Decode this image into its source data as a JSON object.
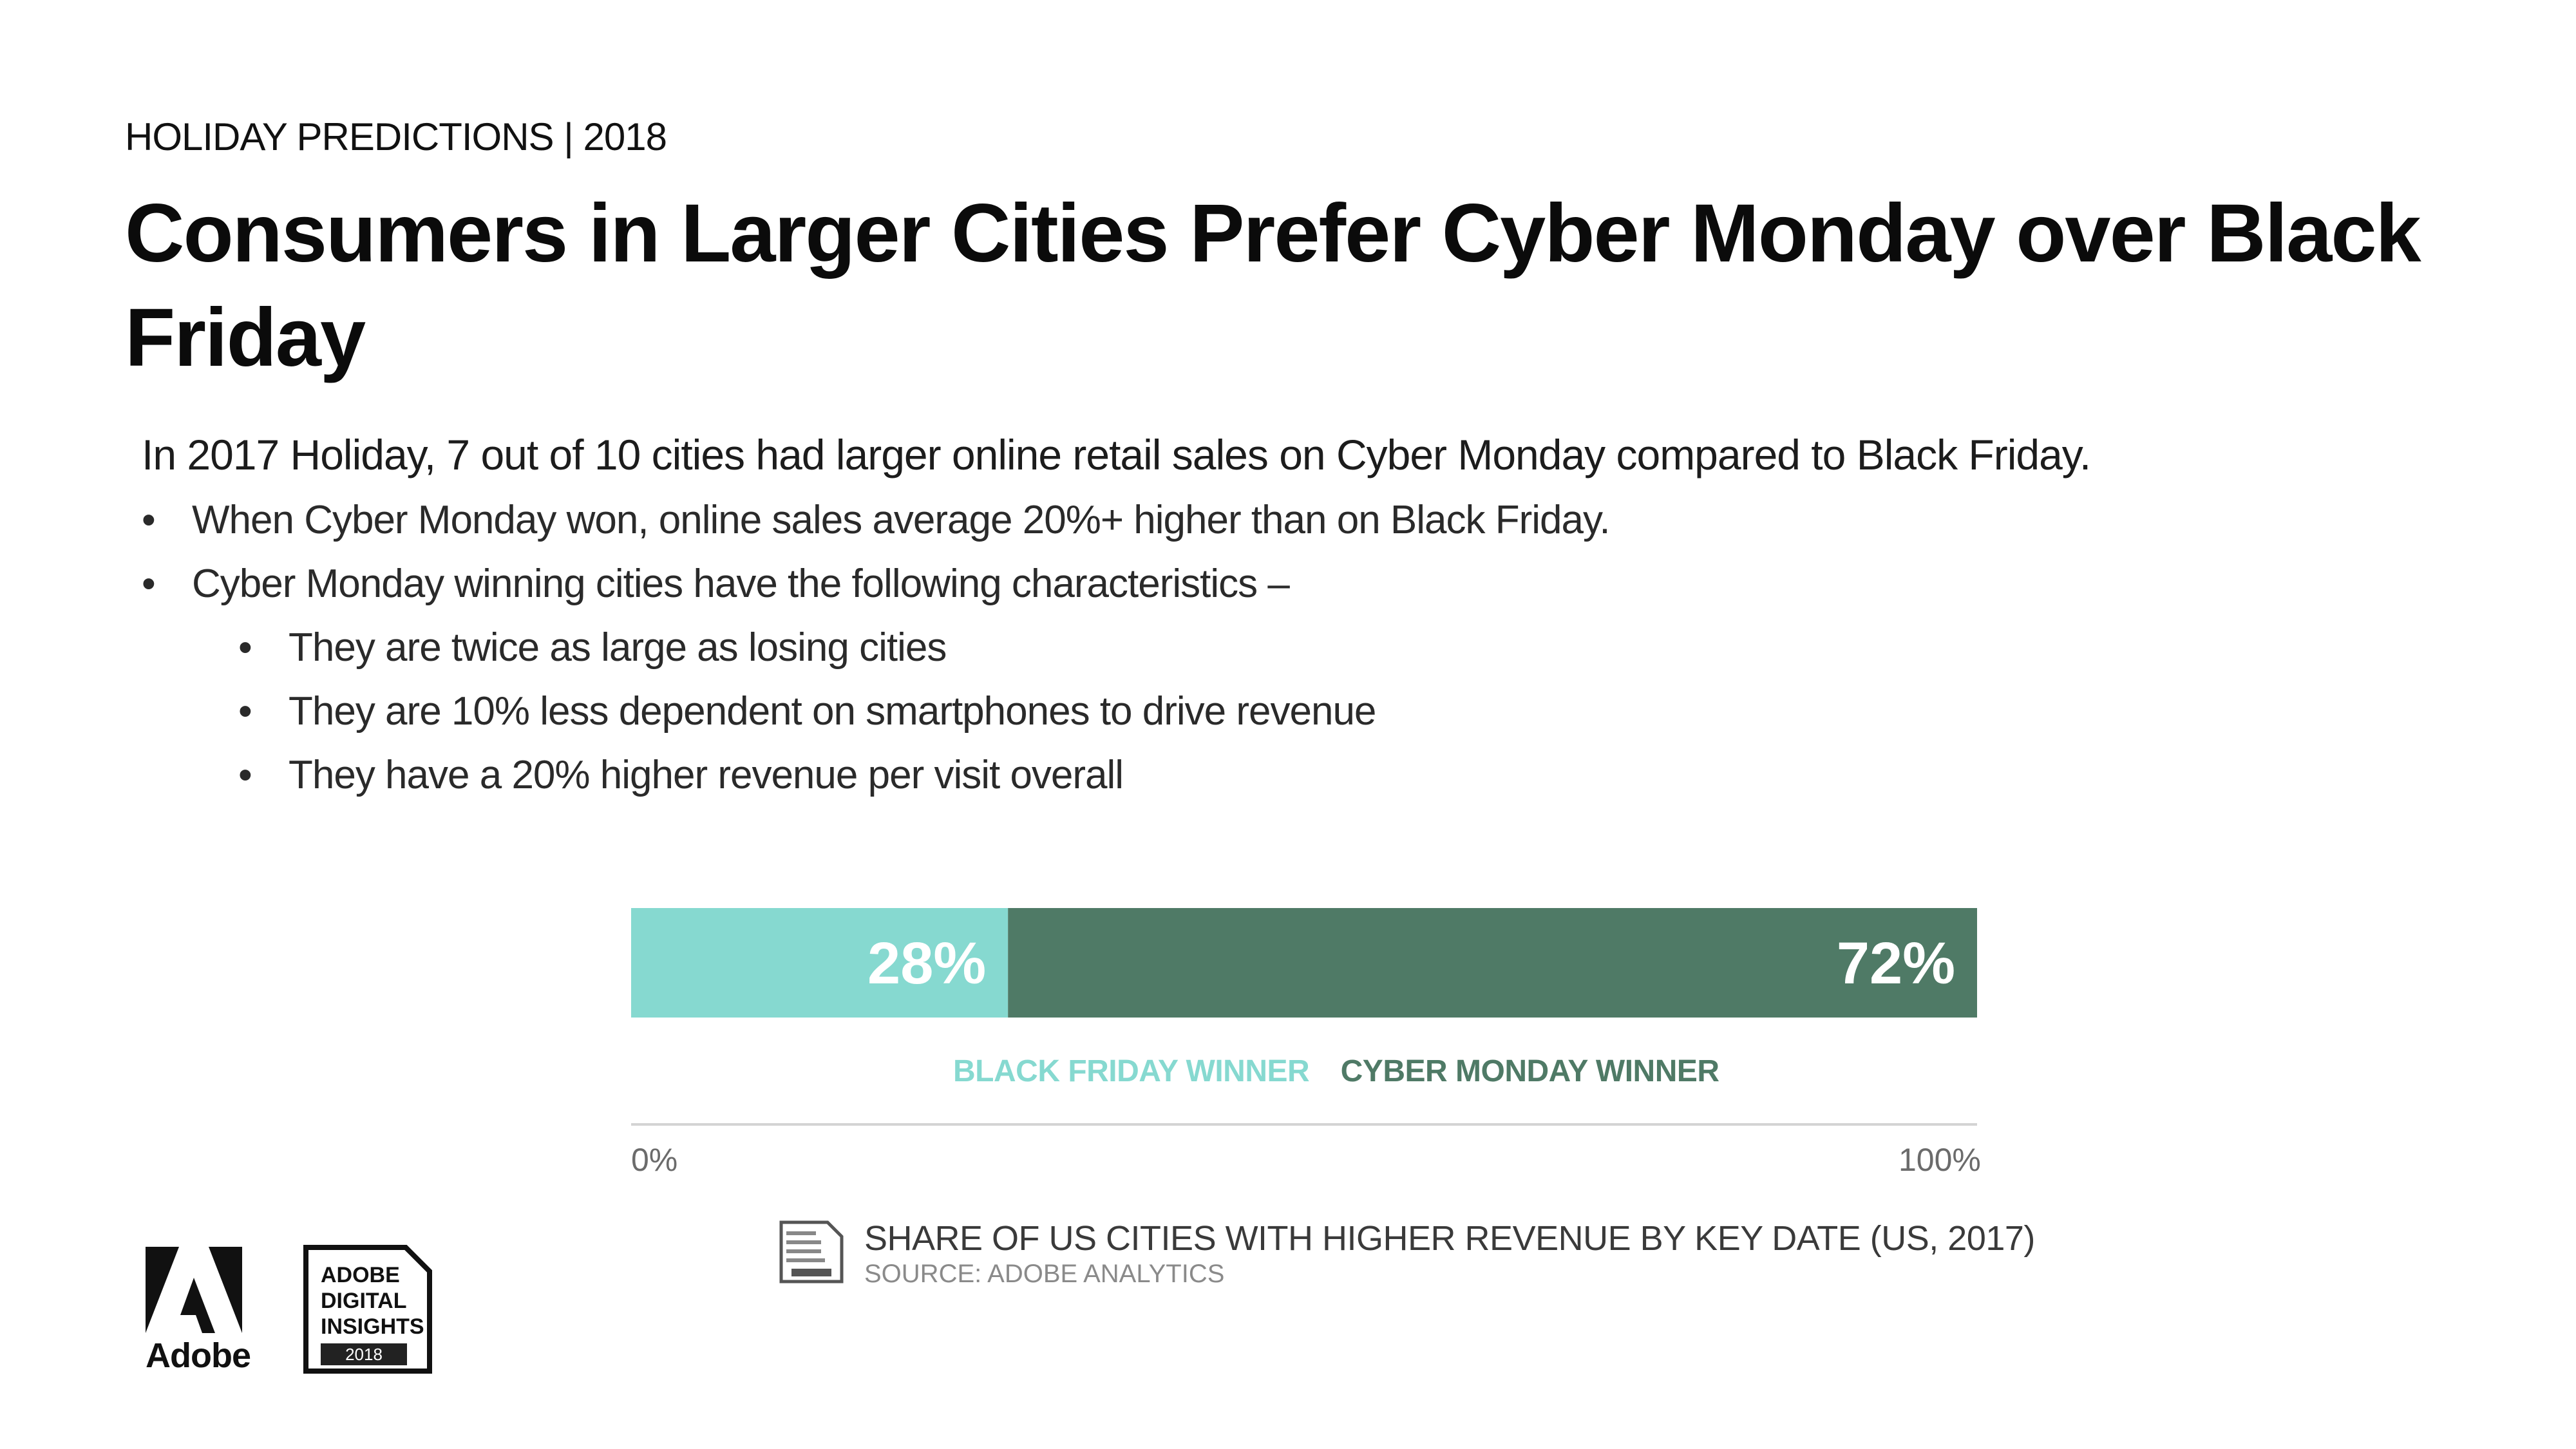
{
  "header": {
    "eyebrow": "HOLIDAY PREDICTIONS | 2018",
    "title": "Consumers in Larger Cities Prefer Cyber Monday over Black Friday"
  },
  "body": {
    "lead": "In 2017 Holiday, 7 out of 10 cities had larger online retail sales on Cyber Monday compared to Black Friday.",
    "bullet_glyph": "•",
    "bullets": [
      "When Cyber Monday won, online sales average 20%+ higher than on Black Friday.",
      "Cyber Monday winning cities have the following characteristics –"
    ],
    "sub_bullets": [
      "They are twice as large as losing cities",
      "They are 10% less dependent on smartphones to drive revenue",
      "They have a 20% higher revenue per visit overall"
    ]
  },
  "chart_data": {
    "type": "bar",
    "orientation": "horizontal-stacked-100",
    "series": [
      {
        "name": "BLACK FRIDAY WINNER",
        "value": 28,
        "label": "28%",
        "color": "#86d9d0"
      },
      {
        "name": "CYBER MONDAY WINNER",
        "value": 72,
        "label": "72%",
        "color": "#4f7a66"
      }
    ],
    "xlim": [
      0,
      100
    ],
    "tick_labels": [
      "0%",
      "100%"
    ],
    "caption": "SHARE OF US CITIES WITH HIGHER REVENUE BY KEY DATE (US, 2017)",
    "source": "SOURCE: ADOBE ANALYTICS"
  },
  "branding": {
    "adobe_wordmark": "Adobe",
    "badge_lines": [
      "ADOBE",
      "DIGITAL",
      "INSIGHTS"
    ],
    "badge_year": "2018",
    "colors": {
      "adobe_logo": "#111111",
      "badge_year_bg": "#222222"
    }
  }
}
